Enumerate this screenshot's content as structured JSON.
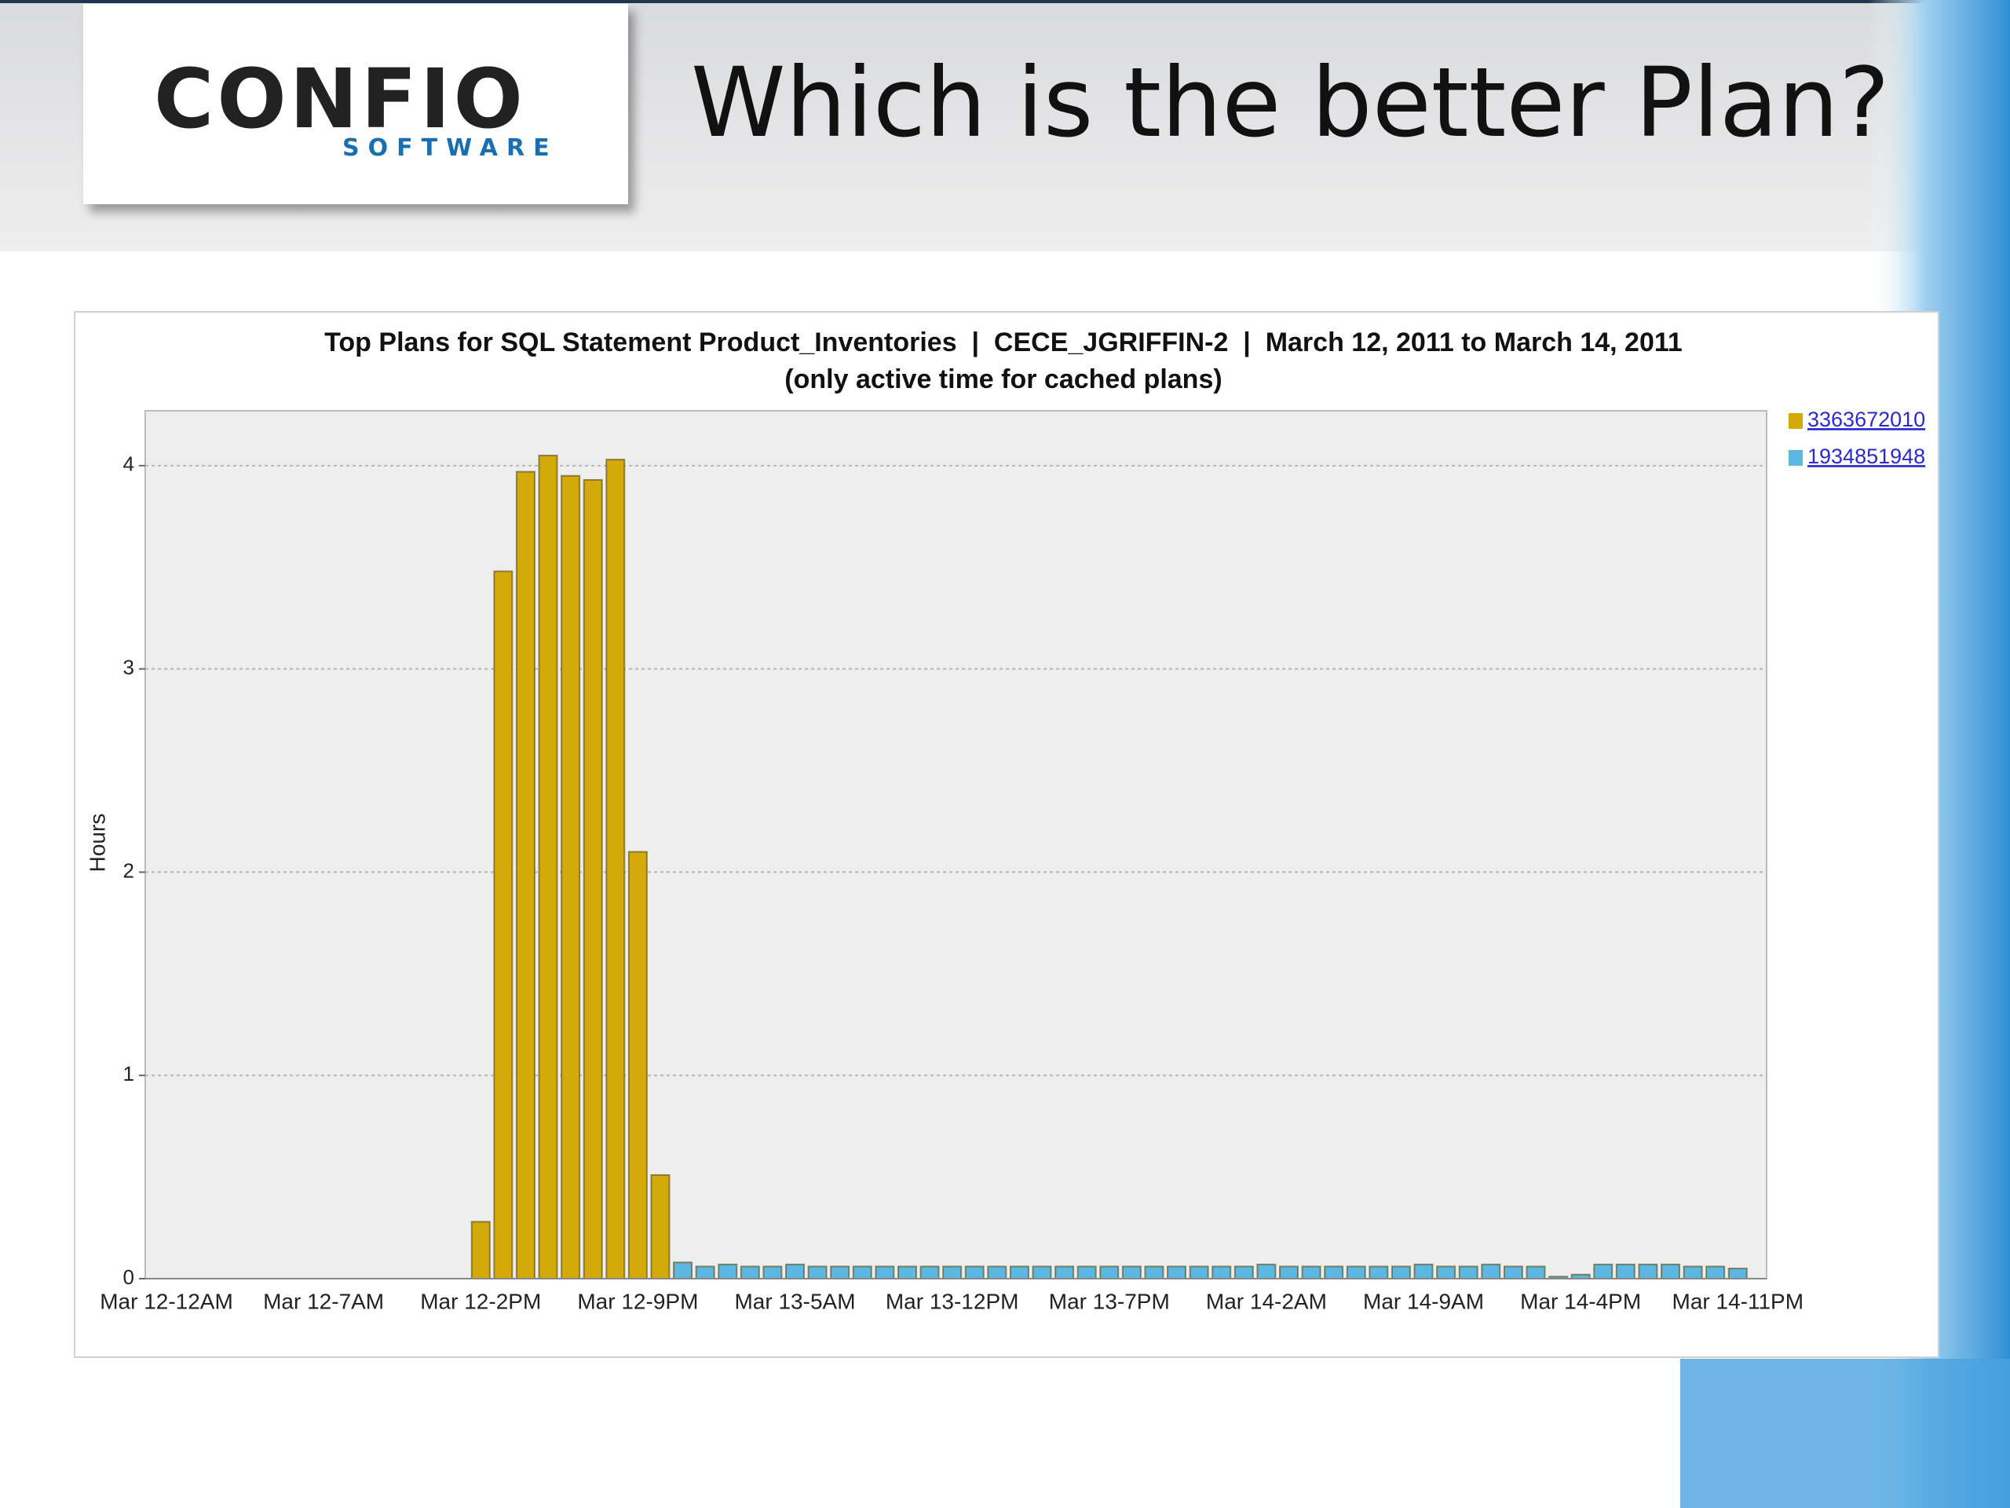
{
  "slide": {
    "title": "Which is the better Plan?",
    "logo": {
      "name": "CONFIO",
      "tagline": "SOFTWARE"
    }
  },
  "chart_data": {
    "type": "bar",
    "title": "Top Plans for SQL Statement Product_Inventories  |  CECE_JGRIFFIN-2  |  March 12, 2011 to March 14, 2011",
    "subtitle": "(only active time for cached plans)",
    "y_label": "Hours",
    "categories": [
      "Mar 12-12AM",
      null,
      null,
      null,
      null,
      null,
      null,
      "Mar 12-7AM",
      null,
      null,
      null,
      null,
      null,
      null,
      "Mar 12-2PM",
      null,
      null,
      null,
      null,
      null,
      null,
      "Mar 12-9PM",
      null,
      null,
      null,
      null,
      null,
      null,
      "Mar 13-5AM",
      null,
      null,
      null,
      null,
      null,
      null,
      "Mar 13-12PM",
      null,
      null,
      null,
      null,
      null,
      null,
      "Mar 13-7PM",
      null,
      null,
      null,
      null,
      null,
      null,
      "Mar 14-2AM",
      null,
      null,
      null,
      null,
      null,
      null,
      "Mar 14-9AM",
      null,
      null,
      null,
      null,
      null,
      null,
      "Mar 14-4PM",
      null,
      null,
      null,
      null,
      null,
      null,
      "Mar 14-11PM"
    ],
    "series": [
      {
        "name": "3363672010",
        "color": "#d4a90a",
        "values": [
          0,
          0,
          0,
          0,
          0,
          0,
          0,
          0,
          0,
          0,
          0,
          0,
          0,
          0,
          0.28,
          3.48,
          3.97,
          4.05,
          3.95,
          3.93,
          4.03,
          2.1,
          0.51,
          0,
          0,
          0,
          0,
          0,
          0,
          0,
          0,
          0,
          0,
          0,
          0,
          0,
          0,
          0,
          0,
          0,
          0,
          0,
          0,
          0,
          0,
          0,
          0,
          0,
          0,
          0,
          0,
          0,
          0,
          0,
          0,
          0,
          0,
          0,
          0,
          0,
          0,
          0,
          0,
          0,
          0,
          0,
          0,
          0,
          0,
          0,
          0
        ]
      },
      {
        "name": "1934851948",
        "color": "#5cb8e0",
        "values": [
          0,
          0,
          0,
          0,
          0,
          0,
          0,
          0,
          0,
          0,
          0,
          0,
          0,
          0,
          0,
          0,
          0,
          0,
          0,
          0,
          0,
          0,
          0,
          0.08,
          0.06,
          0.07,
          0.06,
          0.06,
          0.07,
          0.06,
          0.06,
          0.06,
          0.06,
          0.06,
          0.06,
          0.06,
          0.06,
          0.06,
          0.06,
          0.06,
          0.06,
          0.06,
          0.06,
          0.06,
          0.06,
          0.06,
          0.06,
          0.06,
          0.06,
          0.07,
          0.06,
          0.06,
          0.06,
          0.06,
          0.06,
          0.06,
          0.07,
          0.06,
          0.06,
          0.07,
          0.06,
          0.06,
          0.01,
          0.02,
          0.07,
          0.07,
          0.07,
          0.07,
          0.06,
          0.06,
          0.05
        ]
      }
    ],
    "ylim": [
      0,
      4.27
    ],
    "yticks": [
      0,
      1,
      2,
      3,
      4
    ],
    "grid": true,
    "legend": "right"
  }
}
